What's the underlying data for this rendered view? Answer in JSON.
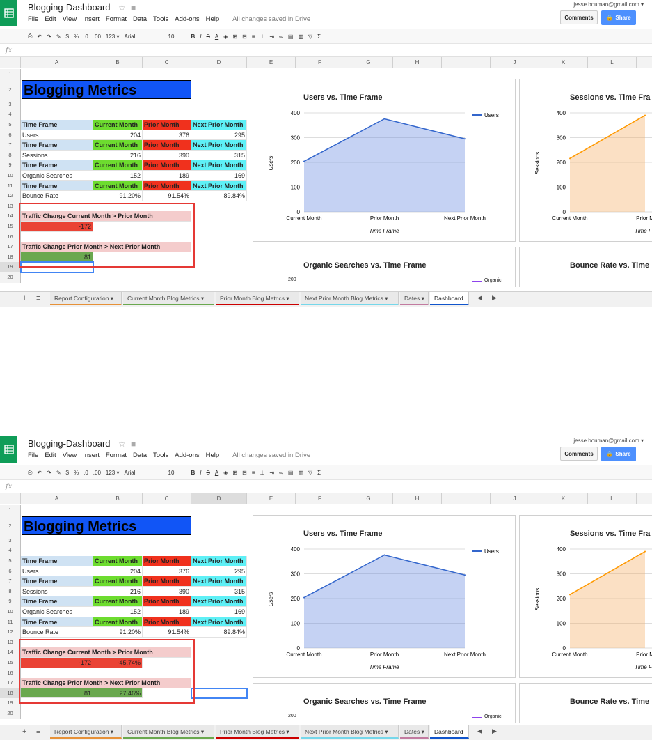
{
  "doc": {
    "title": "Blogging-Dashboard",
    "saved": "All changes saved in Drive",
    "user": "jesse.bouman@gmail.com",
    "comments": "Comments",
    "share": "Share"
  },
  "menu": [
    "File",
    "Edit",
    "View",
    "Insert",
    "Format",
    "Data",
    "Tools",
    "Add-ons",
    "Help"
  ],
  "toolbar": {
    "font": "Arial",
    "size": "10",
    "zoom": "123",
    "pct": "%",
    "dec0": ".0",
    "dec00": ".00",
    "cur": "$",
    "bold": "B",
    "italic": "I",
    "strike": "S",
    "color": "A",
    "sigma": "Σ"
  },
  "columns": [
    "A",
    "B",
    "C",
    "D",
    "E",
    "F",
    "G",
    "H",
    "I",
    "J",
    "K",
    "L"
  ],
  "rows": [
    "1",
    "2",
    "3",
    "4",
    "5",
    "6",
    "7",
    "8",
    "9",
    "10",
    "11",
    "12",
    "13",
    "14",
    "15",
    "16",
    "17",
    "18",
    "19",
    "20"
  ],
  "sheet": {
    "heading": "Blogging Metrics",
    "hdr": {
      "tf": "Time Frame",
      "cm": "Current Month",
      "pm": "Prior Month",
      "np": "Next Prior Month"
    },
    "metrics": [
      {
        "label": "Users",
        "cm": "204",
        "pm": "376",
        "np": "295"
      },
      {
        "label": "Sessions",
        "cm": "216",
        "pm": "390",
        "np": "315"
      },
      {
        "label": "Organic Searches",
        "cm": "152",
        "pm": "189",
        "np": "169"
      },
      {
        "label": "Bounce Rate",
        "cm": "91.20%",
        "pm": "91.54%",
        "np": "89.84%"
      }
    ],
    "tc1_label": "Traffic Change Current Month > Prior Month",
    "tc1_value": "-172",
    "tc2_label": "Traffic Change Prior Month > Next Prior Month",
    "tc2_value": "81"
  },
  "sheet2": {
    "tc1_pct": "-45.74%",
    "tc2_pct": "27.46%"
  },
  "charts": {
    "users": {
      "title": "Users vs. Time Frame",
      "ylabel": "Users",
      "xlabel": "Time Frame",
      "legend": "Users"
    },
    "sessions": {
      "title": "Sessions vs. Time Fra",
      "ylabel": "Sessions",
      "xlabel": "Time F"
    },
    "organic": {
      "title": "Organic Searches vs. Time Frame",
      "legend": "Organic"
    },
    "bounce": {
      "title": "Bounce Rate vs. Time"
    }
  },
  "chart_data": [
    {
      "type": "area",
      "title": "Users vs. Time Frame",
      "categories": [
        "Current Month",
        "Prior Month",
        "Next Prior Month"
      ],
      "series": [
        {
          "name": "Users",
          "values": [
            204,
            376,
            295
          ]
        }
      ],
      "xlabel": "Time Frame",
      "ylabel": "Users",
      "ylim": [
        0,
        400
      ],
      "yticks": [
        "0",
        "100",
        "200",
        "300",
        "400"
      ],
      "legend": "right",
      "color": "#3366cc"
    },
    {
      "type": "area",
      "title": "Sessions vs. Time Fra",
      "categories": [
        "Current Month",
        "Prior M"
      ],
      "series": [
        {
          "values": [
            216,
            390
          ]
        }
      ],
      "ylabel": "Sessions",
      "ylim": [
        0,
        400
      ],
      "yticks": [
        "0",
        "100",
        "200",
        "300",
        "400"
      ],
      "color": "#ff9900"
    }
  ],
  "tabs": [
    "Report Configuration",
    "Current Month Blog Metrics",
    "Prior Month Blog Metrics",
    "Next Prior Month Blog Metrics",
    "Dates",
    "Dashboard"
  ],
  "tab_colors": [
    "#e69138",
    "#6aa84f",
    "#cc0000",
    "#76d7ea",
    "#c27ba0",
    "#1155cc"
  ]
}
